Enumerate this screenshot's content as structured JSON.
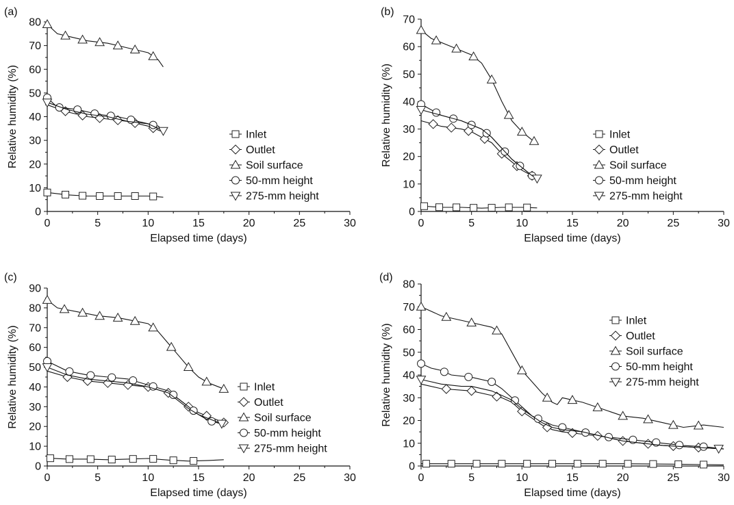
{
  "figure": {
    "marker_color": "#222222",
    "line_color": "#111111"
  },
  "chart_data": [
    {
      "type": "line",
      "panel_label": "(a)",
      "xlabel": "Elapsed time (days)",
      "ylabel": "Relative humidity (%)",
      "xlim": [
        0,
        30
      ],
      "ylim": [
        0,
        80
      ],
      "xticks": [
        0,
        5,
        10,
        15,
        20,
        25,
        30
      ],
      "yticks": [
        0,
        10,
        20,
        30,
        40,
        50,
        60,
        70,
        80
      ],
      "legend_position": "right-middle",
      "series": [
        {
          "name": "Inlet",
          "marker": "square",
          "x": [
            0,
            2,
            4,
            6,
            8,
            10,
            11.5
          ],
          "y": [
            8,
            7,
            6.5,
            6.5,
            6.5,
            6.5,
            6
          ],
          "marker_x": [
            0,
            1.8,
            3.5,
            5.2,
            7,
            8.7,
            10.5
          ]
        },
        {
          "name": "Outlet",
          "marker": "diamond",
          "x": [
            0,
            2,
            4,
            6,
            8,
            10,
            11.5
          ],
          "y": [
            45,
            42,
            40,
            39,
            38,
            36,
            33.5
          ],
          "marker_x": [
            1.8,
            3.5,
            5.2,
            7,
            8.7,
            10.5
          ]
        },
        {
          "name": "Soil surface",
          "marker": "triangle-up",
          "x": [
            0,
            1,
            2,
            4,
            6,
            8,
            10,
            11,
            11.5
          ],
          "y": [
            79,
            75,
            74,
            72,
            71,
            69,
            67,
            64,
            61
          ],
          "marker_x": [
            0,
            1.8,
            3.5,
            5.2,
            7,
            8.7,
            10.5
          ]
        },
        {
          "name": "50-mm height",
          "marker": "circle",
          "x": [
            0,
            1,
            3,
            5,
            7,
            9,
            11,
            11.5
          ],
          "y": [
            48,
            44,
            43,
            41,
            40,
            38,
            36,
            34
          ],
          "marker_x": [
            0,
            1.2,
            3,
            4.7,
            6.3,
            8.3,
            10.5
          ]
        },
        {
          "name": "275-mm height",
          "marker": "triangle-down",
          "x": [
            0,
            2,
            4,
            6,
            8,
            10,
            11.5
          ],
          "y": [
            46,
            43,
            41,
            40,
            38,
            37,
            34
          ],
          "marker_x": [
            0,
            11.5
          ]
        }
      ]
    },
    {
      "type": "line",
      "panel_label": "(b)",
      "xlabel": "Elapsed time (days)",
      "ylabel": "Relative humidity (%)",
      "xlim": [
        0,
        30
      ],
      "ylim": [
        0,
        70
      ],
      "xticks": [
        0,
        5,
        10,
        15,
        20,
        25,
        30
      ],
      "yticks": [
        0,
        10,
        20,
        30,
        40,
        50,
        60,
        70
      ],
      "legend_position": "right-middle",
      "series": [
        {
          "name": "Inlet",
          "marker": "square",
          "x": [
            0,
            2,
            4,
            6,
            8,
            10,
            11.5
          ],
          "y": [
            2,
            1.5,
            1.5,
            1.2,
            1.5,
            1.5,
            1.3
          ],
          "marker_x": [
            0.3,
            1.8,
            3.5,
            5.2,
            7,
            8.7,
            10.5
          ]
        },
        {
          "name": "Outlet",
          "marker": "diamond",
          "x": [
            0,
            2,
            4,
            5,
            6,
            7,
            8,
            9,
            10,
            11,
            11.5
          ],
          "y": [
            33,
            31,
            30,
            29,
            27,
            25,
            21,
            18,
            15,
            13,
            12
          ],
          "marker_x": [
            1.2,
            3,
            4.7,
            6.3,
            8,
            9.5,
            11
          ]
        },
        {
          "name": "Soil surface",
          "marker": "triangle-up",
          "x": [
            0,
            1,
            3,
            5,
            6,
            7,
            8,
            9,
            10,
            11,
            11.5
          ],
          "y": [
            66,
            63,
            60,
            57,
            54,
            48,
            40,
            33,
            29,
            26,
            25
          ],
          "marker_x": [
            0,
            1.5,
            3.5,
            5.2,
            7,
            8.7,
            10,
            11.2
          ]
        },
        {
          "name": "50-mm height",
          "marker": "circle",
          "x": [
            0,
            2,
            4,
            6,
            7,
            8,
            9,
            10,
            11,
            11.5
          ],
          "y": [
            39,
            35,
            33,
            30,
            27,
            23,
            19,
            16,
            13,
            12
          ],
          "marker_x": [
            0,
            1.5,
            3.2,
            5,
            6.5,
            8.3,
            9.8,
            11
          ]
        },
        {
          "name": "275-mm height",
          "marker": "triangle-down",
          "x": [
            0,
            2,
            4,
            6,
            7,
            8,
            9,
            10,
            11,
            11.5
          ],
          "y": [
            37,
            35,
            33,
            30,
            27,
            23,
            19,
            16,
            13,
            12
          ],
          "marker_x": [
            0,
            11.5
          ]
        }
      ]
    },
    {
      "type": "line",
      "panel_label": "(c)",
      "xlabel": "Elapsed time (days)",
      "ylabel": "Relative humidity (%)",
      "xlim": [
        0,
        30
      ],
      "ylim": [
        0,
        90
      ],
      "xticks": [
        0,
        5,
        10,
        15,
        20,
        25,
        30
      ],
      "yticks": [
        0,
        10,
        20,
        30,
        40,
        50,
        60,
        70,
        80,
        90
      ],
      "legend_position": "right-bottom",
      "series": [
        {
          "name": "Inlet",
          "marker": "square",
          "x": [
            0,
            2,
            4,
            6,
            8,
            10,
            12,
            14,
            16,
            17.5
          ],
          "y": [
            4,
            3.5,
            3.5,
            3.2,
            3.5,
            3.8,
            3,
            2.5,
            2.8,
            3.2
          ],
          "marker_x": [
            0.3,
            2.2,
            4.3,
            6.4,
            8.5,
            10.5,
            12.5,
            14.5
          ]
        },
        {
          "name": "Outlet",
          "marker": "diamond",
          "x": [
            0,
            2,
            4,
            6,
            8,
            10,
            12,
            13,
            14,
            15,
            16,
            17.5
          ],
          "y": [
            48,
            45,
            43,
            42,
            41,
            40,
            37,
            34,
            30,
            27,
            25,
            22
          ],
          "marker_x": [
            2,
            4,
            6,
            8,
            10,
            12,
            14,
            15.8,
            17.5
          ]
        },
        {
          "name": "Soil surface",
          "marker": "triangle-up",
          "x": [
            0,
            1,
            3,
            5,
            7,
            9,
            10,
            11,
            12,
            13,
            14,
            15,
            16,
            17.5
          ],
          "y": [
            84,
            80,
            78,
            76,
            75,
            73,
            72,
            68,
            62,
            56,
            50,
            45,
            42,
            39
          ],
          "marker_x": [
            0,
            1.7,
            3.5,
            5.2,
            7,
            8.7,
            10.5,
            12.3,
            14,
            15.8,
            17.5
          ]
        },
        {
          "name": "50-mm height",
          "marker": "circle",
          "x": [
            0,
            2,
            4,
            6,
            8,
            10,
            12,
            13,
            14,
            15,
            16,
            17.5
          ],
          "y": [
            53,
            48,
            46,
            45,
            44,
            41,
            38,
            34,
            30,
            26,
            23,
            21
          ],
          "marker_x": [
            0,
            2.2,
            4.3,
            6.4,
            8.5,
            10.5,
            12.5,
            14.5,
            16.3
          ]
        },
        {
          "name": "275-mm height",
          "marker": "triangle-down",
          "x": [
            0,
            2,
            4,
            6,
            8,
            10,
            12,
            13,
            14,
            15,
            16,
            17.5
          ],
          "y": [
            50,
            46,
            44,
            43,
            42,
            40,
            37,
            33,
            29,
            26,
            24,
            21
          ],
          "marker_x": [
            0,
            17.3
          ]
        }
      ]
    },
    {
      "type": "line",
      "panel_label": "(d)",
      "xlabel": "Elapsed time (days)",
      "ylabel": "Relative humidity (%)",
      "xlim": [
        0,
        30
      ],
      "ylim": [
        0,
        80
      ],
      "xticks": [
        0,
        5,
        10,
        15,
        20,
        25,
        30
      ],
      "yticks": [
        0,
        10,
        20,
        30,
        40,
        50,
        60,
        70,
        80
      ],
      "legend_position": "right-top",
      "series": [
        {
          "name": "Inlet",
          "marker": "square",
          "x": [
            0,
            5,
            10,
            15,
            20,
            25,
            30
          ],
          "y": [
            1,
            1,
            1,
            1,
            1,
            0.8,
            0.5
          ],
          "marker_x": [
            0.5,
            3,
            5.5,
            8,
            10.5,
            13,
            15.5,
            18,
            20.5,
            23,
            25.5,
            28
          ]
        },
        {
          "name": "Outlet",
          "marker": "diamond",
          "x": [
            0,
            2,
            5,
            7,
            8,
            9,
            10,
            11,
            12,
            13,
            14,
            16,
            18,
            20,
            22,
            24,
            26,
            28,
            30
          ],
          "y": [
            36,
            34,
            33,
            31,
            30,
            28,
            24,
            21,
            18,
            16,
            15,
            14,
            13,
            11,
            10,
            9,
            8.5,
            8,
            7.5
          ],
          "marker_x": [
            2.5,
            5,
            7.5,
            10,
            12.5,
            15,
            17.5,
            20,
            22.5,
            25,
            27.5
          ]
        },
        {
          "name": "Soil surface",
          "marker": "triangle-up",
          "x": [
            0,
            2,
            5,
            7,
            8,
            9,
            10,
            11,
            12,
            13,
            13.5,
            14,
            16,
            18,
            20,
            22,
            24,
            26,
            28,
            30
          ],
          "y": [
            70,
            66,
            63,
            61,
            58,
            50,
            42,
            37,
            32,
            28,
            27,
            30,
            28,
            25,
            22,
            21,
            19,
            17,
            18,
            17
          ],
          "marker_x": [
            0,
            2.5,
            5,
            7.5,
            10,
            12.5,
            15,
            17.5,
            20,
            22.5,
            25,
            27.5
          ]
        },
        {
          "name": "50-mm height",
          "marker": "circle",
          "x": [
            0,
            1,
            2,
            3,
            5,
            7,
            8,
            9,
            10,
            11,
            12,
            13,
            14,
            16,
            18,
            20,
            22,
            24,
            26,
            28,
            30
          ],
          "y": [
            45,
            43,
            42,
            40,
            39,
            37,
            34,
            30,
            26,
            22,
            20,
            18,
            17,
            15,
            13,
            12,
            11,
            10,
            9,
            8.5,
            7.5
          ],
          "marker_x": [
            0,
            2.3,
            4.7,
            7,
            9.3,
            11.6,
            14,
            16.3,
            18.6,
            21,
            23.3,
            25.6,
            28
          ]
        },
        {
          "name": "275-mm height",
          "marker": "triangle-down",
          "x": [
            0,
            2,
            4,
            5,
            7,
            8,
            9,
            10,
            11,
            12,
            13,
            14,
            16,
            18,
            20,
            22,
            24,
            26,
            28,
            30
          ],
          "y": [
            38,
            36,
            35,
            35,
            33,
            31,
            29,
            25,
            22,
            19,
            17,
            16,
            15,
            13,
            11,
            10,
            9,
            8.5,
            8,
            7.5
          ],
          "marker_x": [
            0,
            29.5
          ]
        }
      ]
    }
  ]
}
